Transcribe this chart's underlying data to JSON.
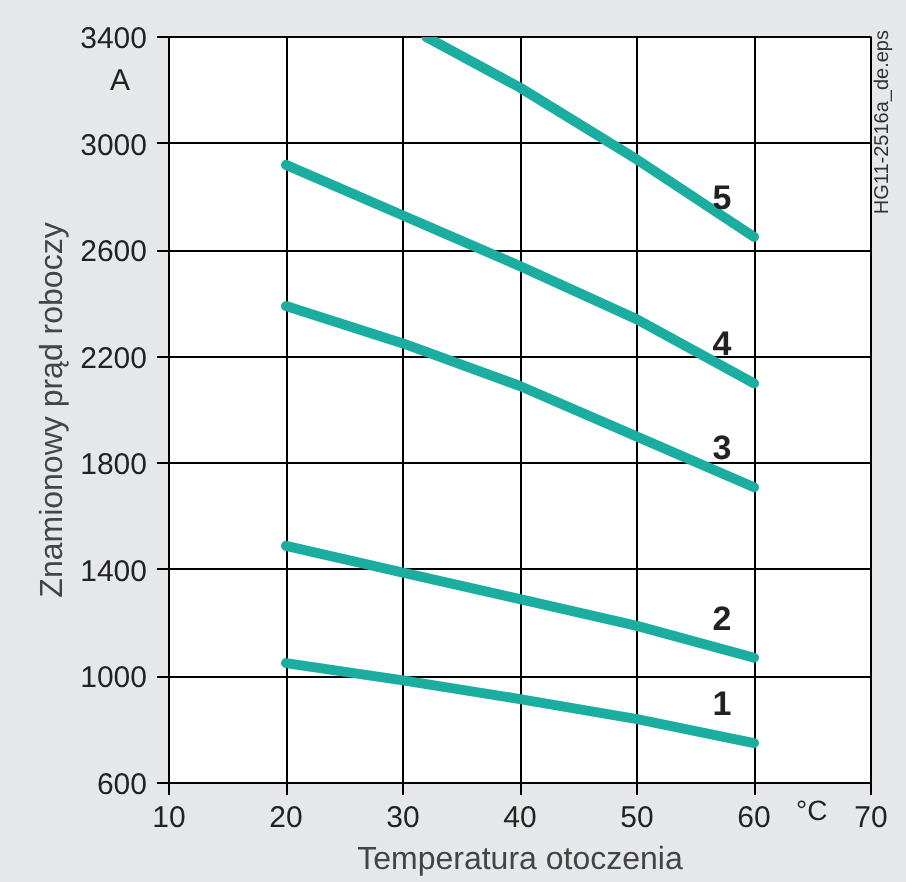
{
  "chart_data": {
    "type": "line",
    "xlabel": "Temperatura otoczenia",
    "ylabel": "Znamionowy prąd roboczy",
    "x": [
      20,
      30,
      40,
      50,
      60
    ],
    "series": [
      {
        "name": "1",
        "color": "#1aada0",
        "values": [
          1050,
          985,
          915,
          840,
          750
        ]
      },
      {
        "name": "2",
        "color": "#1aada0",
        "values": [
          1490,
          1390,
          1290,
          1190,
          1070
        ]
      },
      {
        "name": "3",
        "color": "#1aada0",
        "values": [
          2390,
          2250,
          2090,
          1900,
          1710
        ]
      },
      {
        "name": "4",
        "color": "#1aada0",
        "values": [
          2920,
          2730,
          2540,
          2340,
          2100
        ]
      },
      {
        "name": "5",
        "color": "#1aada0",
        "x": [
          32,
          40,
          50,
          60
        ],
        "values": [
          3400,
          3210,
          2940,
          2650
        ]
      }
    ],
    "xlim": [
      10,
      70
    ],
    "xticks": [
      10,
      20,
      30,
      40,
      50,
      60,
      70
    ],
    "ylim": [
      600,
      3400
    ],
    "yticks": [
      600,
      1000,
      1400,
      1800,
      2200,
      2600,
      3000,
      3400
    ],
    "grid": true,
    "marker": "none",
    "line_style": "solid",
    "annotations": [
      "A",
      "°C",
      "HG11-2516a_de.eps"
    ]
  }
}
